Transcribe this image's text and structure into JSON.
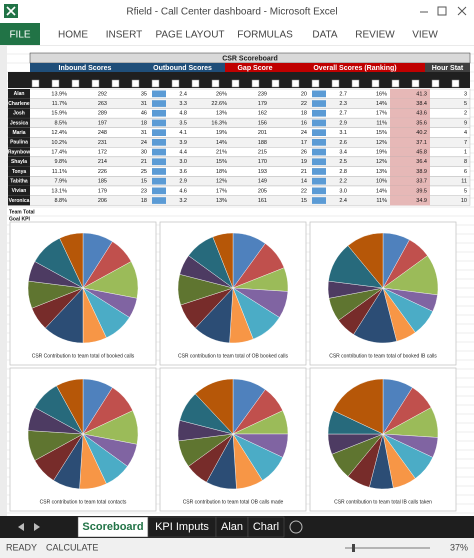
{
  "window": {
    "title": "Rfield - Call Center dashboard - Microsoft Excel"
  },
  "ribbon": {
    "tabs": [
      "FILE",
      "HOME",
      "INSERT",
      "PAGE LAYOUT",
      "FORMULAS",
      "DATA",
      "REVIEW",
      "VIEW"
    ]
  },
  "scoreboard": {
    "title": "CSR Scoreboard",
    "sections": [
      "Inbound Scores",
      "Outbound Scores",
      "Gap Score",
      "Overall Scores (Ranking)",
      "Hour Stat"
    ],
    "rows": [
      {
        "name": "Alan",
        "cells": [
          "13.9%",
          "292",
          "35",
          "2.4",
          "26%",
          "239",
          "20",
          "2.7",
          "16%",
          "41.3",
          "3"
        ]
      },
      {
        "name": "Charlene",
        "cells": [
          "11.7%",
          "263",
          "31",
          "3.3",
          "22.6%",
          "179",
          "22",
          "2.3",
          "14%",
          "38.4",
          "5"
        ]
      },
      {
        "name": "Josh",
        "cells": [
          "15.9%",
          "289",
          "46",
          "4.8",
          "13%",
          "162",
          "18",
          "2.7",
          "17%",
          "43.6",
          "2"
        ]
      },
      {
        "name": "Jessica",
        "cells": [
          "8.5%",
          "197",
          "18",
          "3.5",
          "16.3%",
          "156",
          "16",
          "2.9",
          "11%",
          "35.6",
          "9"
        ]
      },
      {
        "name": "Maria",
        "cells": [
          "12.4%",
          "248",
          "31",
          "4.1",
          "19%",
          "201",
          "24",
          "3.1",
          "15%",
          "40.2",
          "4"
        ]
      },
      {
        "name": "Paulina",
        "cells": [
          "10.2%",
          "231",
          "24",
          "3.9",
          "14%",
          "188",
          "17",
          "2.6",
          "12%",
          "37.1",
          "7"
        ]
      },
      {
        "name": "Raynbow",
        "cells": [
          "17.4%",
          "172",
          "30",
          "4.4",
          "21%",
          "215",
          "26",
          "3.4",
          "19%",
          "45.8",
          "1"
        ]
      },
      {
        "name": "Shayla",
        "cells": [
          "9.8%",
          "214",
          "21",
          "3.0",
          "15%",
          "170",
          "19",
          "2.5",
          "12%",
          "36.4",
          "8"
        ]
      },
      {
        "name": "Tonya",
        "cells": [
          "11.1%",
          "226",
          "25",
          "3.6",
          "18%",
          "193",
          "21",
          "2.8",
          "13%",
          "38.9",
          "6"
        ]
      },
      {
        "name": "Tabitha",
        "cells": [
          "7.9%",
          "185",
          "15",
          "2.9",
          "12%",
          "149",
          "14",
          "2.2",
          "10%",
          "33.7",
          "11"
        ]
      },
      {
        "name": "Vivian",
        "cells": [
          "13.1%",
          "179",
          "23",
          "4.6",
          "17%",
          "205",
          "22",
          "3.0",
          "14%",
          "39.5",
          "5"
        ]
      },
      {
        "name": "Veronica",
        "cells": [
          "8.8%",
          "206",
          "18",
          "3.2",
          "13%",
          "161",
          "15",
          "2.4",
          "11%",
          "34.9",
          "10"
        ]
      }
    ],
    "totals": [
      "Team Total",
      "Goal KPI"
    ]
  },
  "chart_data": [
    {
      "type": "pie",
      "title": "CSR Contribution to team total of booked calls",
      "values": [
        9,
        8,
        11,
        6,
        9,
        7,
        12,
        7,
        8,
        6,
        10,
        7
      ],
      "colors": [
        "#4f81bd",
        "#c0504d",
        "#9bbb59",
        "#8064a2",
        "#4bacc6",
        "#f79646",
        "#2c4d75",
        "#772c2a",
        "#5f7530",
        "#4d3b62",
        "#276a7c",
        "#b65708"
      ]
    },
    {
      "type": "pie",
      "title": "CSR contribution to team total of OB booked calls",
      "values": [
        10,
        9,
        7,
        8,
        10,
        7,
        11,
        8,
        9,
        6,
        9,
        6
      ],
      "colors": [
        "#4f81bd",
        "#c0504d",
        "#9bbb59",
        "#8064a2",
        "#4bacc6",
        "#f79646",
        "#2c4d75",
        "#772c2a",
        "#5f7530",
        "#4d3b62",
        "#276a7c",
        "#b65708"
      ]
    },
    {
      "type": "pie",
      "title": "CSR contribution to team total of booked IB calls",
      "values": [
        8,
        7,
        12,
        5,
        8,
        6,
        13,
        6,
        7,
        5,
        12,
        11
      ],
      "colors": [
        "#4f81bd",
        "#c0504d",
        "#9bbb59",
        "#8064a2",
        "#4bacc6",
        "#f79646",
        "#2c4d75",
        "#772c2a",
        "#5f7530",
        "#4d3b62",
        "#276a7c",
        "#b65708"
      ]
    },
    {
      "type": "pie",
      "title": "CSR contribution to team total contacts",
      "values": [
        9,
        9,
        10,
        7,
        8,
        8,
        8,
        8,
        9,
        7,
        9,
        8
      ],
      "colors": [
        "#4f81bd",
        "#c0504d",
        "#9bbb59",
        "#8064a2",
        "#4bacc6",
        "#f79646",
        "#2c4d75",
        "#772c2a",
        "#5f7530",
        "#4d3b62",
        "#276a7c",
        "#b65708"
      ]
    },
    {
      "type": "pie",
      "title": "CSR contribution to team total OB calls made",
      "values": [
        10,
        8,
        7,
        7,
        9,
        8,
        9,
        7,
        8,
        6,
        9,
        12
      ],
      "colors": [
        "#4f81bd",
        "#c0504d",
        "#9bbb59",
        "#8064a2",
        "#4bacc6",
        "#f79646",
        "#2c4d75",
        "#772c2a",
        "#5f7530",
        "#4d3b62",
        "#276a7c",
        "#b65708"
      ]
    },
    {
      "type": "pie",
      "title": "CSR contribution to team total IB calls taken",
      "values": [
        9,
        8,
        9,
        6,
        8,
        7,
        7,
        7,
        8,
        6,
        7,
        18
      ],
      "colors": [
        "#4f81bd",
        "#c0504d",
        "#9bbb59",
        "#8064a2",
        "#4bacc6",
        "#f79646",
        "#2c4d75",
        "#772c2a",
        "#5f7530",
        "#4d3b62",
        "#276a7c",
        "#b65708"
      ]
    }
  ],
  "sheet_tabs": [
    "Scoreboard",
    "KPI Imputs",
    "Alan",
    "Charl"
  ],
  "status": {
    "left": [
      "READY",
      "CALCULATE"
    ],
    "zoom": "37%"
  }
}
